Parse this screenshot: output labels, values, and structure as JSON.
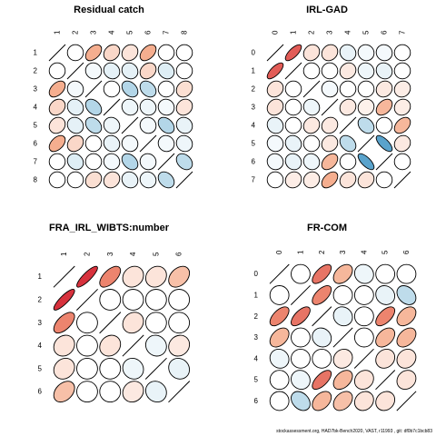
{
  "footer": "stockassessment.org, HAD7bk-Bench2020, VAST,  r11993 ,  git: df0b7c1bcb83",
  "chart_data": [
    {
      "type": "heatmap",
      "title": "Residual catch",
      "row_labels": [
        "1",
        "2",
        "3",
        "4",
        "5",
        "6",
        "7",
        "8"
      ],
      "col_labels": [
        "1",
        "2",
        "3",
        "4",
        "5",
        "6",
        "7",
        "8"
      ],
      "values": [
        [
          1.0,
          0.0,
          0.45,
          0.22,
          0.15,
          0.45,
          0.0,
          0.0
        ],
        [
          0.0,
          1.0,
          -0.05,
          -0.12,
          -0.12,
          0.22,
          -0.15,
          0.0
        ],
        [
          0.45,
          -0.05,
          1.0,
          0.0,
          -0.35,
          -0.3,
          0.0,
          0.18
        ],
        [
          0.22,
          -0.12,
          -0.35,
          1.0,
          -0.08,
          -0.08,
          -0.05,
          0.15
        ],
        [
          0.15,
          -0.12,
          -0.3,
          -0.08,
          1.0,
          -0.05,
          -0.35,
          -0.1
        ],
        [
          0.45,
          0.22,
          0.0,
          -0.1,
          -0.05,
          1.0,
          -0.05,
          -0.08
        ],
        [
          0.0,
          -0.15,
          0.0,
          -0.05,
          -0.35,
          -0.05,
          1.0,
          -0.3
        ],
        [
          0.0,
          0.0,
          0.18,
          0.15,
          -0.1,
          -0.08,
          -0.3,
          1.0
        ]
      ]
    },
    {
      "type": "heatmap",
      "title": "IRL-GAD",
      "row_labels": [
        "0",
        "1",
        "2",
        "3",
        "4",
        "5",
        "6",
        "7"
      ],
      "col_labels": [
        "0",
        "1",
        "2",
        "3",
        "4",
        "5",
        "6",
        "7"
      ],
      "values": [
        [
          1.0,
          0.72,
          0.15,
          0.15,
          -0.1,
          -0.05,
          -0.05,
          0.0
        ],
        [
          0.72,
          1.0,
          0.0,
          0.0,
          0.12,
          -0.08,
          -0.1,
          0.0
        ],
        [
          0.15,
          0.0,
          1.0,
          -0.05,
          0.0,
          0.0,
          0.12,
          0.1
        ],
        [
          0.15,
          0.0,
          -0.08,
          1.0,
          0.12,
          0.08,
          0.4,
          0.1
        ],
        [
          -0.1,
          0.0,
          0.12,
          0.12,
          1.0,
          -0.3,
          0.0,
          0.4
        ],
        [
          -0.05,
          -0.1,
          0.0,
          0.12,
          -0.3,
          1.0,
          -0.7,
          0.12
        ],
        [
          -0.05,
          -0.1,
          -0.08,
          0.4,
          0.0,
          -0.7,
          1.0,
          0.0
        ],
        [
          0.0,
          0.1,
          0.1,
          0.45,
          0.15,
          0.15,
          0.0,
          1.0
        ]
      ]
    },
    {
      "type": "heatmap",
      "title": "FRA_IRL_WIBTS:number",
      "row_labels": [
        "1",
        "2",
        "3",
        "4",
        "5",
        "6"
      ],
      "col_labels": [
        "1",
        "2",
        "3",
        "4",
        "5",
        "6"
      ],
      "values": [
        [
          1.0,
          0.85,
          0.6,
          0.15,
          0.15,
          0.35
        ],
        [
          0.85,
          1.0,
          0.0,
          0.0,
          0.0,
          0.0
        ],
        [
          0.6,
          0.0,
          1.0,
          0.15,
          0.0,
          0.0
        ],
        [
          0.15,
          0.0,
          0.15,
          1.0,
          -0.08,
          0.12
        ],
        [
          0.15,
          0.0,
          0.0,
          -0.08,
          1.0,
          -0.1
        ],
        [
          0.35,
          0.0,
          0.0,
          0.12,
          -0.1,
          1.0
        ]
      ]
    },
    {
      "type": "heatmap",
      "title": "FR-COM",
      "row_labels": [
        "0",
        "1",
        "2",
        "3",
        "4",
        "5",
        "6"
      ],
      "col_labels": [
        "0",
        "1",
        "2",
        "3",
        "4",
        "5",
        "6"
      ],
      "values": [
        [
          1.0,
          0.0,
          0.65,
          0.4,
          -0.08,
          0.0,
          0.0
        ],
        [
          0.0,
          1.0,
          0.6,
          0.0,
          0.0,
          -0.1,
          -0.3
        ],
        [
          0.6,
          0.65,
          1.0,
          -0.1,
          0.0,
          0.6,
          0.4
        ],
        [
          0.4,
          0.0,
          -0.1,
          1.0,
          0.0,
          0.4,
          0.4
        ],
        [
          -0.08,
          0.0,
          0.0,
          0.12,
          1.0,
          0.15,
          0.15
        ],
        [
          0.0,
          -0.08,
          0.65,
          0.4,
          0.15,
          1.0,
          0.15
        ],
        [
          0.0,
          -0.3,
          0.4,
          0.35,
          0.15,
          0.15,
          1.0
        ]
      ]
    }
  ]
}
